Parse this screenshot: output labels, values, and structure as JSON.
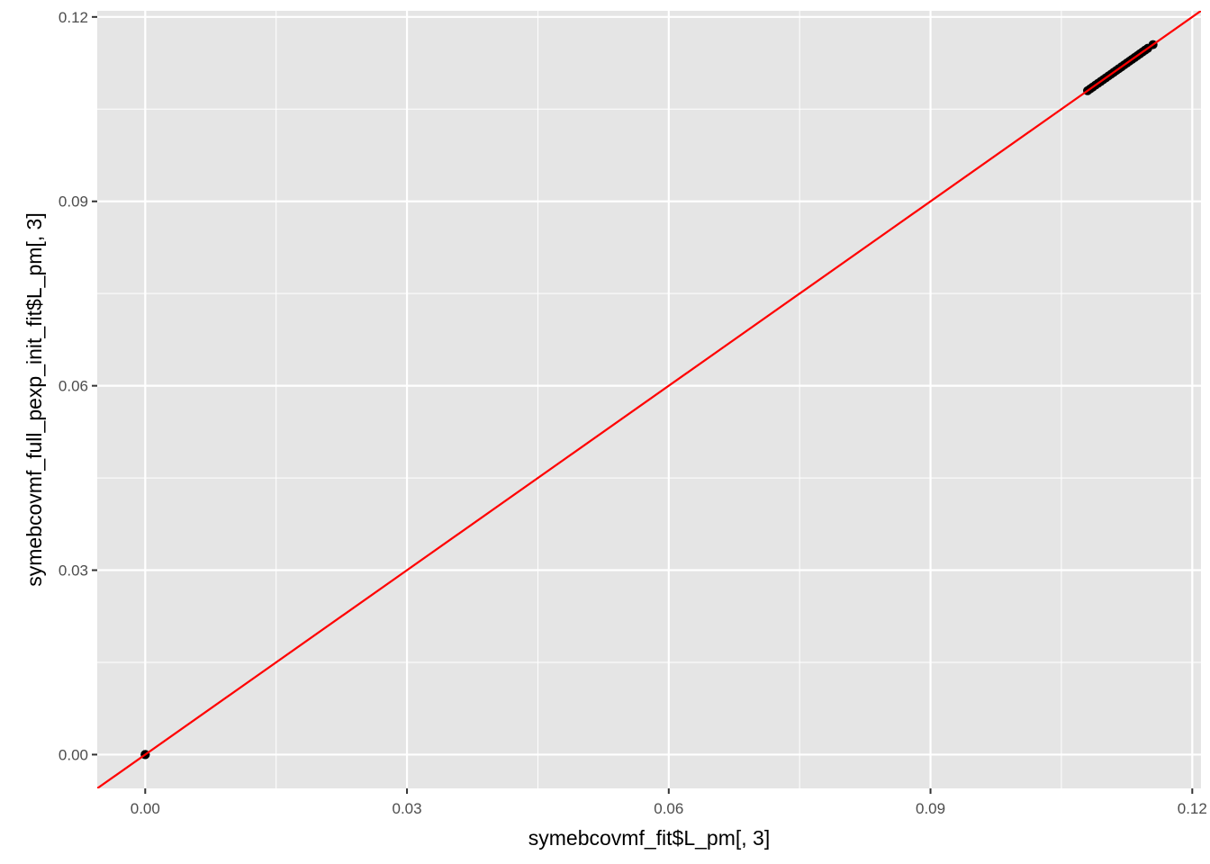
{
  "chart_data": {
    "type": "scatter",
    "xlabel": "symebcovmf_fit$L_pm[, 3]",
    "ylabel": "symebcovmf_full_pexp_init_fit$L_pm[, 3]",
    "xlim": [
      -0.0055,
      0.121
    ],
    "ylim": [
      -0.0055,
      0.121
    ],
    "x_ticks": [
      {
        "value": 0.0,
        "label": "0.00"
      },
      {
        "value": 0.03,
        "label": "0.03"
      },
      {
        "value": 0.06,
        "label": "0.06"
      },
      {
        "value": 0.09,
        "label": "0.09"
      },
      {
        "value": 0.12,
        "label": "0.12"
      }
    ],
    "y_ticks": [
      {
        "value": 0.0,
        "label": "0.00"
      },
      {
        "value": 0.03,
        "label": "0.03"
      },
      {
        "value": 0.06,
        "label": "0.06"
      },
      {
        "value": 0.09,
        "label": "0.09"
      },
      {
        "value": 0.12,
        "label": "0.12"
      }
    ],
    "minor_breaks": [
      0.015,
      0.045,
      0.075,
      0.105
    ],
    "grid": true,
    "panel_background": "#e5e5e5",
    "grid_color": "#ffffff",
    "point_color": "#000000",
    "reference_line": {
      "intercept": 0,
      "slope": 1,
      "color": "#ff0000"
    },
    "points": [
      {
        "x": 0.0,
        "y": 0.0
      },
      {
        "x": 0.0,
        "y": 0.0
      },
      {
        "x": 0.0,
        "y": 0.0
      },
      {
        "x": 0.108,
        "y": 0.108
      },
      {
        "x": 0.1083,
        "y": 0.1083
      },
      {
        "x": 0.1086,
        "y": 0.1086
      },
      {
        "x": 0.1089,
        "y": 0.1089
      },
      {
        "x": 0.1092,
        "y": 0.1092
      },
      {
        "x": 0.1095,
        "y": 0.1095
      },
      {
        "x": 0.1098,
        "y": 0.1098
      },
      {
        "x": 0.1101,
        "y": 0.1101
      },
      {
        "x": 0.1104,
        "y": 0.1104
      },
      {
        "x": 0.1107,
        "y": 0.1107
      },
      {
        "x": 0.111,
        "y": 0.111
      },
      {
        "x": 0.1113,
        "y": 0.1113
      },
      {
        "x": 0.1116,
        "y": 0.1116
      },
      {
        "x": 0.1119,
        "y": 0.1119
      },
      {
        "x": 0.1122,
        "y": 0.1122
      },
      {
        "x": 0.1125,
        "y": 0.1125
      },
      {
        "x": 0.1128,
        "y": 0.1128
      },
      {
        "x": 0.1131,
        "y": 0.1131
      },
      {
        "x": 0.1134,
        "y": 0.1134
      },
      {
        "x": 0.1137,
        "y": 0.1137
      },
      {
        "x": 0.114,
        "y": 0.114
      },
      {
        "x": 0.1143,
        "y": 0.1143
      },
      {
        "x": 0.1146,
        "y": 0.1146
      },
      {
        "x": 0.1149,
        "y": 0.1149
      },
      {
        "x": 0.1155,
        "y": 0.1155
      }
    ]
  }
}
